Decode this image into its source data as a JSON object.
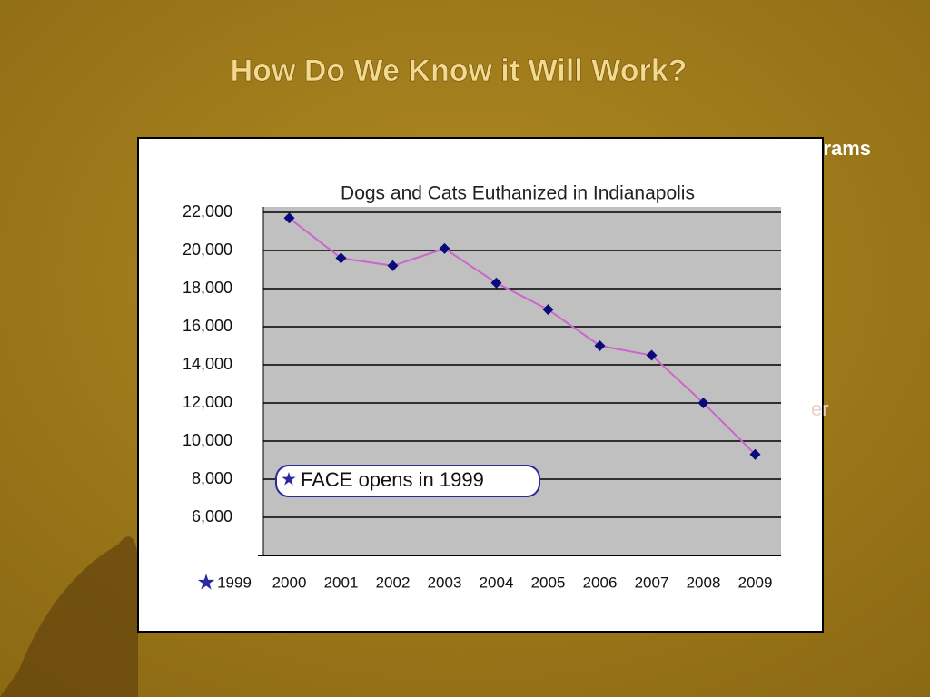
{
  "slide": {
    "title": "How Do We Know it Will Work?",
    "fragments": [
      "grams",
      "er"
    ]
  },
  "chart_data": {
    "type": "line",
    "title": "Dogs and Cats Euthanized in Indianapolis",
    "categories": [
      "2000",
      "2001",
      "2002",
      "2003",
      "2004",
      "2005",
      "2006",
      "2007",
      "2008",
      "2009"
    ],
    "values": [
      21700,
      19600,
      19200,
      20100,
      18300,
      16900,
      15000,
      14500,
      12000,
      9300
    ],
    "line_color": "#cc66cc",
    "marker_color": "#0a0a7a",
    "ylim": [
      4000,
      22000
    ],
    "yticks": [
      {
        "value": 6000,
        "label": "6,000"
      },
      {
        "value": 8000,
        "label": "8,000"
      },
      {
        "value": 10000,
        "label": "10,000"
      },
      {
        "value": 12000,
        "label": "12,000"
      },
      {
        "value": 14000,
        "label": "14,000"
      },
      {
        "value": 16000,
        "label": "16,000"
      },
      {
        "value": 18000,
        "label": "18,000"
      },
      {
        "value": 20000,
        "label": "20,000"
      },
      {
        "value": 22000,
        "label": "22,000"
      }
    ],
    "grid": true,
    "annotation": "FACE opens in 1999",
    "x_note": "1999"
  }
}
